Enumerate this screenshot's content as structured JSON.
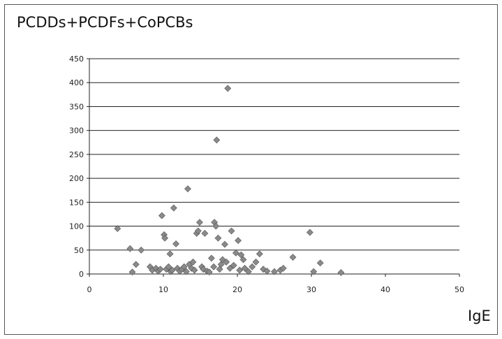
{
  "chart_data": {
    "type": "scatter",
    "title": "PCDDs+PCDFs+CoPCBs",
    "xlabel": "IgE",
    "ylabel": "",
    "xlim": [
      0,
      50
    ],
    "ylim": [
      0,
      450
    ],
    "xticks": [
      "0",
      "10",
      "20",
      "30",
      "40",
      "50"
    ],
    "yticks": [
      "0",
      "50",
      "100",
      "150",
      "200",
      "250",
      "300",
      "350",
      "400",
      "450"
    ],
    "grid": "horizontal",
    "marker": "diamond",
    "marker_color": "#8a8a8a",
    "series": [
      {
        "points": [
          [
            3.8,
            95
          ],
          [
            5.5,
            53
          ],
          [
            5.8,
            4
          ],
          [
            6.3,
            20
          ],
          [
            7.0,
            50
          ],
          [
            8.2,
            15
          ],
          [
            8.5,
            8
          ],
          [
            9.0,
            12
          ],
          [
            9.3,
            6
          ],
          [
            9.6,
            10
          ],
          [
            9.8,
            122
          ],
          [
            10.1,
            82
          ],
          [
            10.2,
            75
          ],
          [
            10.4,
            10
          ],
          [
            10.7,
            15
          ],
          [
            10.9,
            42
          ],
          [
            11.0,
            5
          ],
          [
            11.2,
            8
          ],
          [
            11.4,
            138
          ],
          [
            11.7,
            63
          ],
          [
            11.9,
            12
          ],
          [
            12.2,
            6
          ],
          [
            12.5,
            10
          ],
          [
            12.8,
            15
          ],
          [
            13.1,
            5
          ],
          [
            13.3,
            178
          ],
          [
            13.5,
            20
          ],
          [
            13.8,
            12
          ],
          [
            14.0,
            25
          ],
          [
            14.2,
            8
          ],
          [
            14.5,
            85
          ],
          [
            14.7,
            90
          ],
          [
            14.9,
            108
          ],
          [
            15.2,
            15
          ],
          [
            15.4,
            10
          ],
          [
            15.6,
            85
          ],
          [
            15.9,
            6
          ],
          [
            16.2,
            4
          ],
          [
            16.5,
            33
          ],
          [
            16.8,
            15
          ],
          [
            16.9,
            108
          ],
          [
            17.1,
            100
          ],
          [
            17.2,
            280
          ],
          [
            17.4,
            75
          ],
          [
            17.6,
            10
          ],
          [
            17.8,
            20
          ],
          [
            18.0,
            30
          ],
          [
            18.3,
            62
          ],
          [
            18.5,
            25
          ],
          [
            18.7,
            388
          ],
          [
            19.0,
            12
          ],
          [
            19.2,
            90
          ],
          [
            19.5,
            18
          ],
          [
            19.8,
            44
          ],
          [
            20.1,
            70
          ],
          [
            20.3,
            8
          ],
          [
            20.5,
            40
          ],
          [
            20.8,
            30
          ],
          [
            21.0,
            12
          ],
          [
            21.5,
            5
          ],
          [
            22.0,
            15
          ],
          [
            22.5,
            25
          ],
          [
            23.0,
            42
          ],
          [
            23.5,
            10
          ],
          [
            24.0,
            6
          ],
          [
            25.0,
            5
          ],
          [
            25.8,
            8
          ],
          [
            26.2,
            12
          ],
          [
            27.5,
            35
          ],
          [
            29.8,
            87
          ],
          [
            30.3,
            5
          ],
          [
            31.2,
            23
          ],
          [
            34.0,
            3
          ]
        ]
      }
    ]
  }
}
